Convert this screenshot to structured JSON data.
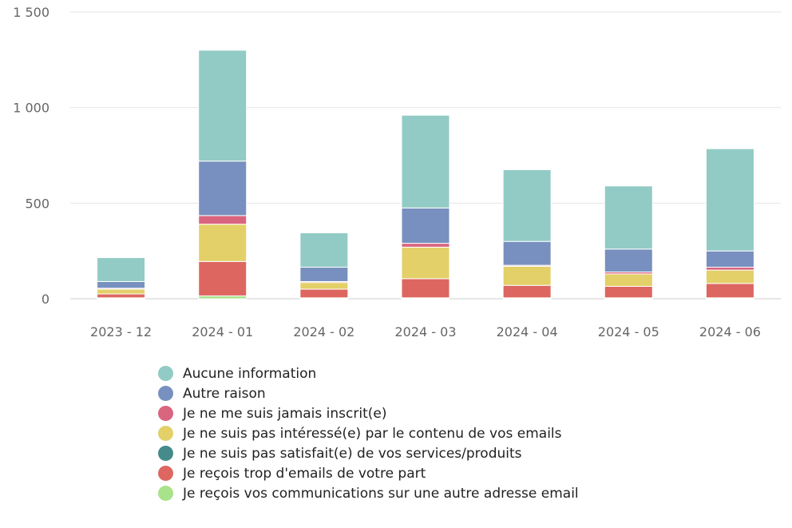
{
  "chart_data": {
    "type": "bar",
    "stacked": true,
    "title": "",
    "xlabel": "",
    "ylabel": "",
    "categories": [
      "2023 - 12",
      "2024 - 01",
      "2024 - 02",
      "2024 - 03",
      "2024 - 04",
      "2024 - 05",
      "2024 - 06"
    ],
    "ylim": [
      0,
      1500
    ],
    "yticks": [
      0,
      500,
      1000,
      1500
    ],
    "ytick_labels": [
      "0",
      "500",
      "1 000",
      "1 500"
    ],
    "grid": true,
    "legend": "bottom",
    "series": [
      {
        "name": "Je reçois vos communications sur une autre adresse email",
        "color": "#a8e28a",
        "values": [
          5,
          15,
          5,
          5,
          5,
          5,
          5
        ]
      },
      {
        "name": "Je reçois trop d'emails de votre part",
        "color": "#dd6760",
        "values": [
          20,
          180,
          45,
          100,
          65,
          60,
          75
        ]
      },
      {
        "name": "Je ne suis pas satisfait(e) de vos services/produits",
        "color": "#458b8b",
        "values": [
          0,
          0,
          0,
          0,
          0,
          0,
          0
        ]
      },
      {
        "name": "Je ne suis pas intéressé(e) par le contenu de vos emails",
        "color": "#e3d068",
        "values": [
          25,
          195,
          35,
          165,
          100,
          65,
          70
        ]
      },
      {
        "name": "Je ne me suis jamais inscrit(e)",
        "color": "#d9647e",
        "values": [
          5,
          45,
          5,
          20,
          5,
          10,
          15
        ]
      },
      {
        "name": "Autre raison",
        "color": "#7890bf",
        "values": [
          35,
          285,
          75,
          185,
          125,
          120,
          85
        ]
      },
      {
        "name": "Aucune information",
        "color": "#92cbc5",
        "values": [
          125,
          580,
          180,
          485,
          375,
          330,
          535
        ]
      }
    ]
  },
  "legend_order": [
    6,
    5,
    4,
    3,
    2,
    1,
    0
  ]
}
